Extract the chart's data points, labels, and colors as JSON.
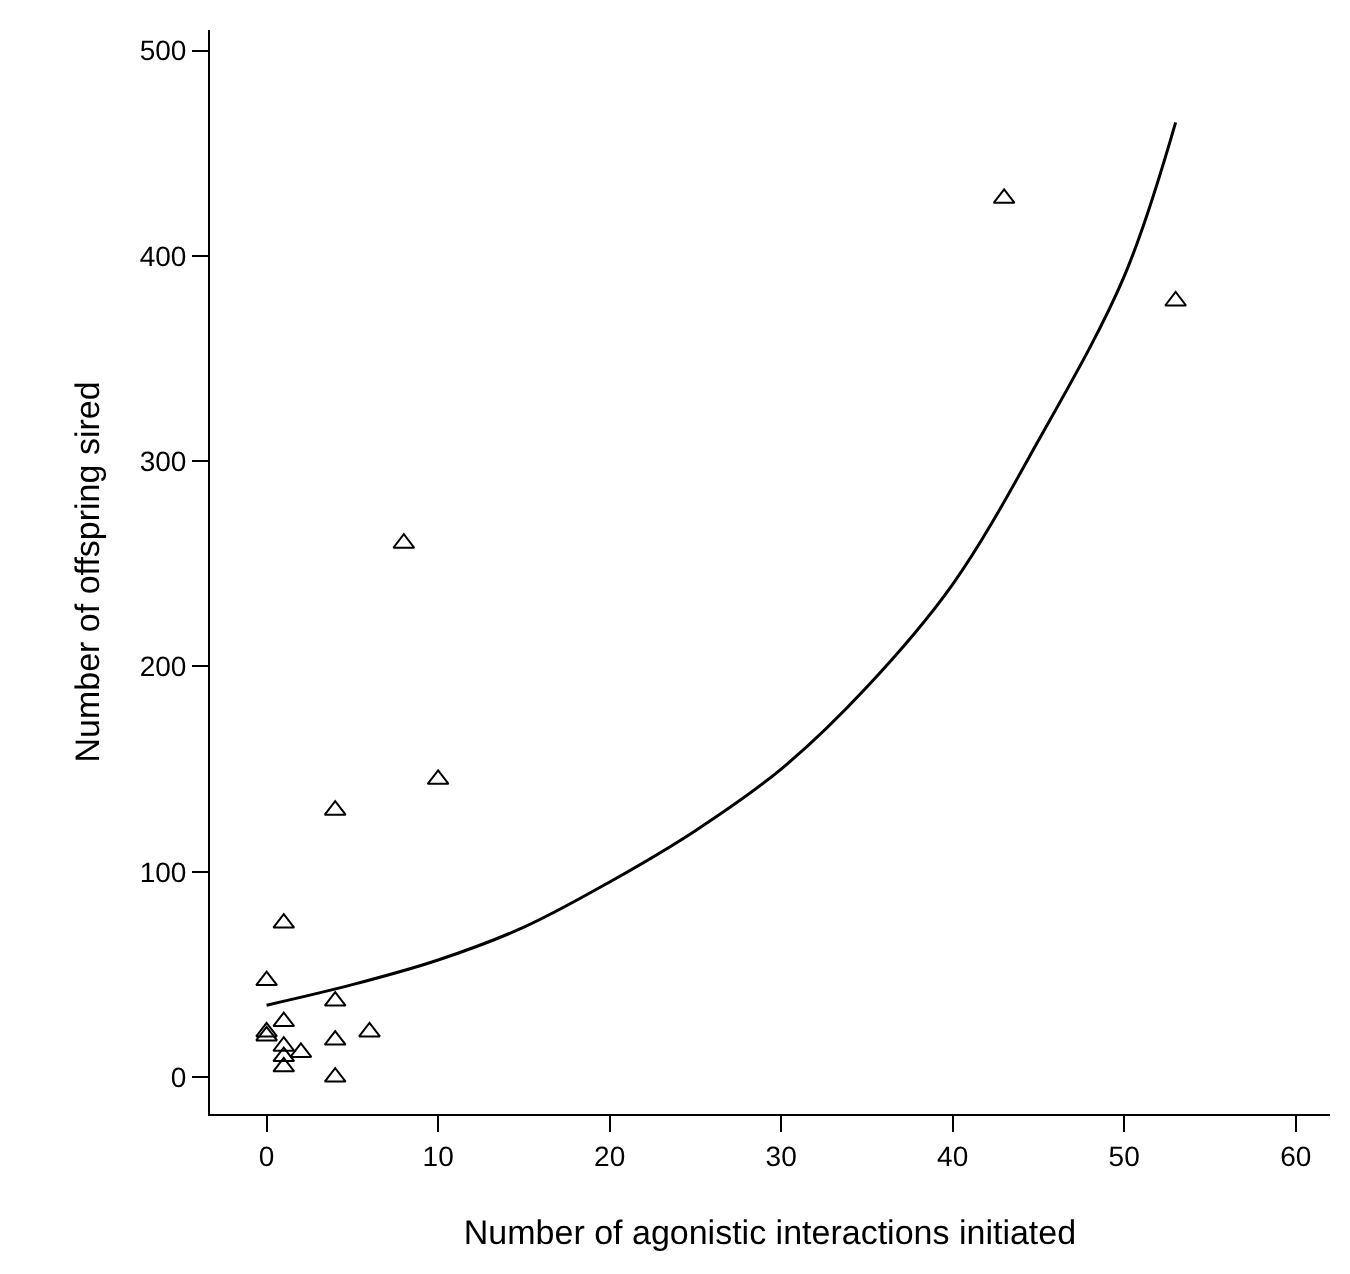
{
  "chart_data": {
    "type": "scatter",
    "xlabel": "Number of agonistic interactions initiated",
    "ylabel": "Number of offspring sired",
    "xlim": [
      -3.3,
      62
    ],
    "ylim": [
      -18,
      510
    ],
    "xticks": [
      0,
      10,
      20,
      30,
      40,
      50,
      60
    ],
    "yticks": [
      0,
      100,
      200,
      300,
      400,
      500
    ],
    "legend": false,
    "marker": "triangle",
    "series": [
      {
        "color": "#000000",
        "x": [
          43,
          53,
          8,
          10,
          4,
          1,
          0,
          0,
          0,
          1,
          1,
          1,
          1,
          2,
          4,
          4,
          4,
          6
        ],
        "values": [
          428,
          378,
          260,
          145,
          130,
          75,
          47,
          22,
          20,
          27,
          15,
          10,
          5,
          12,
          37,
          18,
          0,
          22
        ]
      },
      {
        "type": "line",
        "color": "#000000",
        "line_style": "solid",
        "marker": "none",
        "x": [
          0,
          5,
          10,
          15,
          20,
          25,
          30,
          35,
          40,
          45,
          50,
          53
        ],
        "values": [
          35,
          45,
          57,
          73,
          95,
          120,
          150,
          190,
          240,
          310,
          390,
          465
        ]
      }
    ]
  }
}
